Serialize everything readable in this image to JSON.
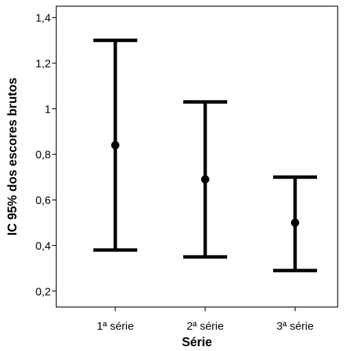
{
  "chart_data": {
    "type": "errorbar",
    "title": "",
    "xlabel": "Série",
    "ylabel": "IC 95% dos escores brutos",
    "categories": [
      "1ª série",
      "2ª série",
      "3ª série"
    ],
    "mean": [
      0.84,
      0.69,
      0.5
    ],
    "lower": [
      0.38,
      0.35,
      0.29
    ],
    "upper": [
      1.3,
      1.03,
      0.7
    ],
    "ylim": [
      0.13,
      1.45
    ],
    "yticks": [
      0.2,
      0.4,
      0.6,
      0.8,
      1.0,
      1.2,
      1.4
    ],
    "ytick_labels": [
      "0,2",
      "0,4",
      "0,6",
      "0,8",
      "1",
      "1,2",
      "1,4"
    ],
    "grid": false,
    "legend": "none"
  }
}
